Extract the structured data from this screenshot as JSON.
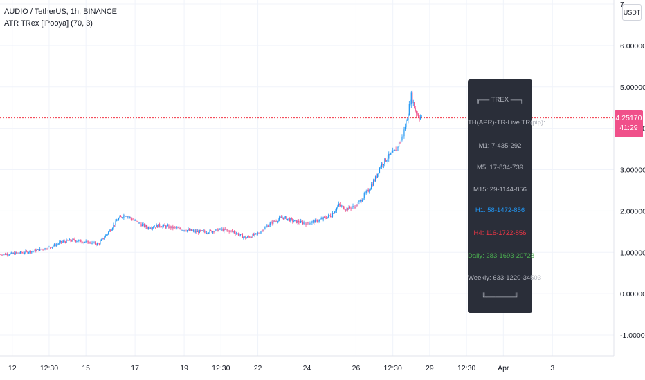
{
  "legend": {
    "symbol_line": "AUDIO / TetherUS, 1h, BINANCE",
    "indicator_line": "ATR TRex [iPooya] (70, 3)"
  },
  "currency": "USDT",
  "last_price": {
    "value": "4.25170",
    "countdown": "41:29"
  },
  "colors": {
    "up": "#2196f3",
    "down": "#f0508a",
    "price_line": "#f23645",
    "panel_bg": "#2a2e39"
  },
  "panel": {
    "header": "╔══ TREX ══╗",
    "title": "TH(APR)-TR-Live TR(pip):",
    "m1": "M1: 7-435-292",
    "m5": "M5: 17-834-739",
    "m15": "M15: 29-1144-856",
    "h1": "H1: 58-1472-856",
    "h4": "H4: 116-1722-856",
    "daily": "Daily: 283-1693-20728",
    "weekly": "Weekly: 633-1220-34503",
    "footer": "╚══════╝"
  },
  "chart_data": {
    "type": "candlestick",
    "title": "AUDIO / TetherUS, 1h, BINANCE",
    "y_ticks": [
      "7",
      "6.00000",
      "5.00000",
      "4.00000",
      "3.00000",
      "2.00000",
      "1.00000",
      "0.00000",
      "-1.00000"
    ],
    "y_tick_values": [
      7,
      6,
      5,
      4,
      3,
      2,
      1,
      0,
      -1
    ],
    "ylim": [
      -1.5,
      7.1
    ],
    "x_ticks": [
      "12",
      "12:30",
      "15",
      "17",
      "19",
      "12:30",
      "22",
      "24",
      "26",
      "12:30",
      "29",
      "12:30",
      "Apr",
      "3"
    ],
    "x_tick_days": [
      12,
      13.5,
      15,
      17,
      19,
      20.5,
      22,
      24,
      26,
      27.5,
      29,
      30.5,
      32,
      34
    ],
    "xlim": [
      11.5,
      36.5
    ],
    "last_price": 4.2517,
    "price_path": [
      [
        11.5,
        0.95
      ],
      [
        12.0,
        0.97
      ],
      [
        12.5,
        1.0
      ],
      [
        13.0,
        1.05
      ],
      [
        13.5,
        1.12
      ],
      [
        14.0,
        1.25
      ],
      [
        14.5,
        1.3
      ],
      [
        15.0,
        1.25
      ],
      [
        15.5,
        1.2
      ],
      [
        16.0,
        1.55
      ],
      [
        16.3,
        1.8
      ],
      [
        16.6,
        1.92
      ],
      [
        17.0,
        1.75
      ],
      [
        17.5,
        1.6
      ],
      [
        18.0,
        1.65
      ],
      [
        18.5,
        1.6
      ],
      [
        19.0,
        1.55
      ],
      [
        19.5,
        1.5
      ],
      [
        20.0,
        1.5
      ],
      [
        20.5,
        1.55
      ],
      [
        21.0,
        1.5
      ],
      [
        21.5,
        1.35
      ],
      [
        22.0,
        1.45
      ],
      [
        22.5,
        1.7
      ],
      [
        23.0,
        1.85
      ],
      [
        23.5,
        1.75
      ],
      [
        24.0,
        1.7
      ],
      [
        24.5,
        1.78
      ],
      [
        25.0,
        1.9
      ],
      [
        25.3,
        2.15
      ],
      [
        25.6,
        2.05
      ],
      [
        26.0,
        2.12
      ],
      [
        26.5,
        2.5
      ],
      [
        26.8,
        2.8
      ],
      [
        27.0,
        3.1
      ],
      [
        27.3,
        3.3
      ],
      [
        27.6,
        3.45
      ],
      [
        27.9,
        3.8
      ],
      [
        28.1,
        4.3
      ],
      [
        28.25,
        4.8
      ],
      [
        28.4,
        4.45
      ],
      [
        28.55,
        4.3
      ],
      [
        28.7,
        4.25
      ]
    ]
  }
}
